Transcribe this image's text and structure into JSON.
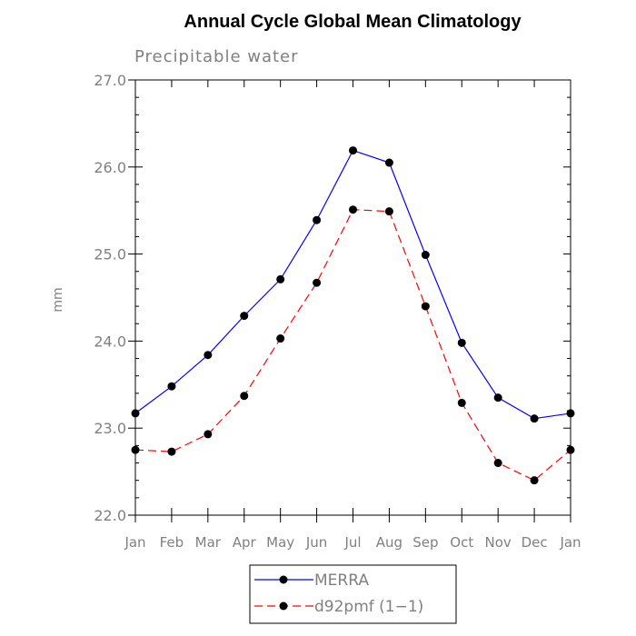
{
  "chart_data": {
    "type": "line",
    "title": "Annual Cycle Global Mean Climatology",
    "subtitle": "Precipitable water",
    "xlabel": "",
    "ylabel": "mm",
    "categories": [
      "Jan",
      "Feb",
      "Mar",
      "Apr",
      "May",
      "Jun",
      "Jul",
      "Aug",
      "Sep",
      "Oct",
      "Nov",
      "Dec",
      "Jan"
    ],
    "ylim": [
      22.0,
      27.0
    ],
    "yticks": [
      "22.0",
      "23.0",
      "24.0",
      "25.0",
      "26.0",
      "27.0"
    ],
    "grid": false,
    "legend_position": "bottom-center",
    "series": [
      {
        "name": "MERRA",
        "color": "#0000ff",
        "dash": "solid",
        "values": [
          23.17,
          23.48,
          23.84,
          24.29,
          24.71,
          25.39,
          26.19,
          26.05,
          24.99,
          23.98,
          23.35,
          23.11,
          23.17
        ]
      },
      {
        "name": "d92pmf (1−1)",
        "color": "#ff0000",
        "dash": "dashed",
        "values": [
          22.75,
          22.73,
          22.93,
          23.37,
          24.03,
          24.67,
          25.51,
          25.49,
          24.4,
          23.29,
          22.6,
          22.4,
          22.75
        ]
      }
    ]
  }
}
